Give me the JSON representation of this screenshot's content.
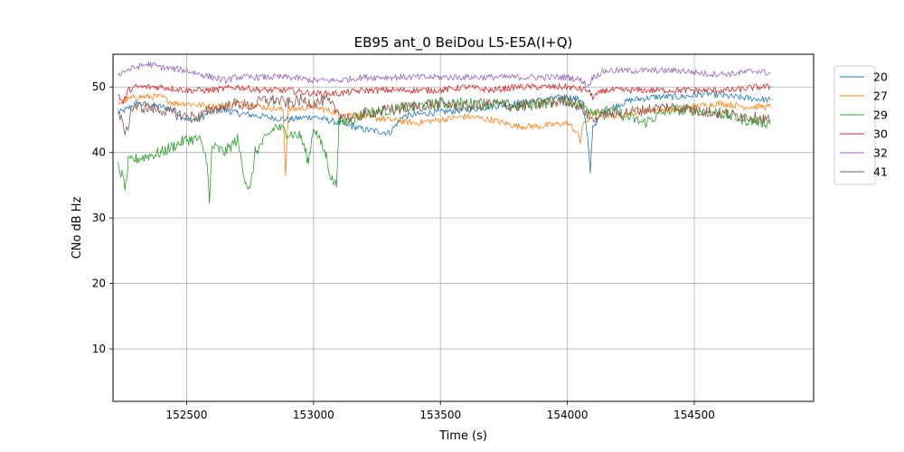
{
  "chart_data": {
    "type": "line",
    "title": "EB95 ant_0 BeiDou L5-E5A(I+Q)",
    "xlabel": "Time (s)",
    "ylabel": "CNo dB Hz",
    "xlim": [
      152210,
      154970
    ],
    "ylim": [
      2,
      55
    ],
    "xticks": [
      152500,
      153000,
      153500,
      154000,
      154500
    ],
    "yticks": [
      10,
      20,
      30,
      40,
      50
    ],
    "grid": true,
    "legend_position": "outside-right",
    "x_range_data": [
      152230,
      154800
    ],
    "series": [
      {
        "name": "20",
        "color": "#1f77b4",
        "points": [
          [
            152230,
            46.0
          ],
          [
            152260,
            46.5
          ],
          [
            152300,
            47.5
          ],
          [
            152400,
            47.0
          ],
          [
            152450,
            46.5
          ],
          [
            152500,
            45.0
          ],
          [
            152550,
            45.0
          ],
          [
            152600,
            46.5
          ],
          [
            152650,
            46.5
          ],
          [
            152700,
            46.0
          ],
          [
            152800,
            45.5
          ],
          [
            152900,
            45.0
          ],
          [
            153000,
            45.5
          ],
          [
            153050,
            45.0
          ],
          [
            153100,
            44.5
          ],
          [
            153200,
            43.5
          ],
          [
            153300,
            43.0
          ],
          [
            153350,
            45.5
          ],
          [
            153450,
            46.0
          ],
          [
            153600,
            46.5
          ],
          [
            153700,
            47.0
          ],
          [
            153800,
            47.5
          ],
          [
            153900,
            48.0
          ],
          [
            154000,
            48.5
          ],
          [
            154060,
            48.0
          ],
          [
            154080,
            42.0
          ],
          [
            154090,
            37.0
          ],
          [
            154100,
            44.0
          ],
          [
            154150,
            46.5
          ],
          [
            154250,
            48.0
          ],
          [
            154350,
            48.5
          ],
          [
            154450,
            48.5
          ],
          [
            154550,
            49.0
          ],
          [
            154650,
            48.5
          ],
          [
            154800,
            48.0
          ]
        ]
      },
      {
        "name": "27",
        "color": "#ff7f0e",
        "points": [
          [
            152230,
            47.5
          ],
          [
            152260,
            48.0
          ],
          [
            152300,
            48.5
          ],
          [
            152400,
            48.5
          ],
          [
            152450,
            47.5
          ],
          [
            152500,
            47.5
          ],
          [
            152600,
            47.0
          ],
          [
            152700,
            47.5
          ],
          [
            152800,
            47.0
          ],
          [
            152880,
            46.5
          ],
          [
            152890,
            36.5
          ],
          [
            152900,
            46.5
          ],
          [
            153000,
            47.0
          ],
          [
            153100,
            46.0
          ],
          [
            153200,
            45.5
          ],
          [
            153300,
            45.0
          ],
          [
            153400,
            44.5
          ],
          [
            153500,
            45.0
          ],
          [
            153600,
            45.5
          ],
          [
            153700,
            45.0
          ],
          [
            153800,
            44.0
          ],
          [
            153900,
            44.0
          ],
          [
            154000,
            44.5
          ],
          [
            154040,
            43.0
          ],
          [
            154050,
            41.5
          ],
          [
            154060,
            44.0
          ],
          [
            154100,
            46.0
          ],
          [
            154200,
            45.5
          ],
          [
            154300,
            46.5
          ],
          [
            154400,
            46.5
          ],
          [
            154500,
            47.0
          ],
          [
            154600,
            47.5
          ],
          [
            154700,
            47.0
          ],
          [
            154800,
            47.0
          ]
        ]
      },
      {
        "name": "29",
        "color": "#2ca02c",
        "points": [
          [
            152230,
            38.0
          ],
          [
            152245,
            36.5
          ],
          [
            152260,
            34.5
          ],
          [
            152270,
            38.5
          ],
          [
            152300,
            39.0
          ],
          [
            152350,
            39.5
          ],
          [
            152400,
            40.0
          ],
          [
            152450,
            41.0
          ],
          [
            152500,
            42.0
          ],
          [
            152550,
            42.0
          ],
          [
            152580,
            39.0
          ],
          [
            152590,
            32.0
          ],
          [
            152600,
            41.0
          ],
          [
            152650,
            40.0
          ],
          [
            152700,
            42.0
          ],
          [
            152730,
            36.0
          ],
          [
            152750,
            34.0
          ],
          [
            152770,
            40.0
          ],
          [
            152800,
            41.5
          ],
          [
            152850,
            44.0
          ],
          [
            152900,
            43.0
          ],
          [
            152950,
            42.5
          ],
          [
            152980,
            38.5
          ],
          [
            153000,
            44.0
          ],
          [
            153050,
            39.5
          ],
          [
            153070,
            36.0
          ],
          [
            153090,
            35.0
          ],
          [
            153100,
            44.5
          ],
          [
            153150,
            45.0
          ],
          [
            153200,
            46.0
          ],
          [
            153300,
            46.5
          ],
          [
            153400,
            47.0
          ],
          [
            153500,
            47.5
          ],
          [
            153600,
            47.5
          ],
          [
            153700,
            47.5
          ],
          [
            153800,
            47.0
          ],
          [
            153900,
            47.5
          ],
          [
            154000,
            48.0
          ],
          [
            154100,
            46.5
          ],
          [
            154200,
            46.0
          ],
          [
            154300,
            44.5
          ],
          [
            154400,
            46.5
          ],
          [
            154500,
            46.5
          ],
          [
            154600,
            46.0
          ],
          [
            154700,
            45.0
          ],
          [
            154800,
            44.5
          ]
        ]
      },
      {
        "name": "30",
        "color": "#d62728",
        "points": [
          [
            152230,
            49.0
          ],
          [
            152250,
            47.5
          ],
          [
            152270,
            49.5
          ],
          [
            152300,
            50.0
          ],
          [
            152400,
            50.0
          ],
          [
            152500,
            49.5
          ],
          [
            152600,
            49.5
          ],
          [
            152700,
            50.0
          ],
          [
            152800,
            49.5
          ],
          [
            152900,
            49.5
          ],
          [
            153000,
            49.0
          ],
          [
            153100,
            49.0
          ],
          [
            153200,
            49.5
          ],
          [
            153300,
            49.5
          ],
          [
            153400,
            49.5
          ],
          [
            153500,
            49.5
          ],
          [
            153600,
            50.0
          ],
          [
            153700,
            49.5
          ],
          [
            153800,
            50.0
          ],
          [
            153900,
            50.0
          ],
          [
            154000,
            50.0
          ],
          [
            154080,
            49.5
          ],
          [
            154100,
            48.5
          ],
          [
            154150,
            49.5
          ],
          [
            154250,
            49.5
          ],
          [
            154350,
            49.5
          ],
          [
            154450,
            49.5
          ],
          [
            154550,
            49.5
          ],
          [
            154650,
            49.5
          ],
          [
            154750,
            50.0
          ],
          [
            154800,
            50.0
          ]
        ]
      },
      {
        "name": "32",
        "color": "#9467bd",
        "points": [
          [
            152230,
            52.0
          ],
          [
            152260,
            52.5
          ],
          [
            152300,
            53.0
          ],
          [
            152350,
            53.5
          ],
          [
            152400,
            53.0
          ],
          [
            152500,
            52.5
          ],
          [
            152550,
            52.0
          ],
          [
            152600,
            51.5
          ],
          [
            152650,
            51.0
          ],
          [
            152700,
            51.5
          ],
          [
            152800,
            51.5
          ],
          [
            152900,
            51.5
          ],
          [
            153000,
            51.0
          ],
          [
            153100,
            51.0
          ],
          [
            153200,
            51.5
          ],
          [
            153300,
            51.5
          ],
          [
            153400,
            51.5
          ],
          [
            153500,
            51.5
          ],
          [
            153600,
            51.5
          ],
          [
            153700,
            51.5
          ],
          [
            153800,
            51.5
          ],
          [
            153900,
            51.5
          ],
          [
            154000,
            51.5
          ],
          [
            154060,
            51.0
          ],
          [
            154080,
            50.0
          ],
          [
            154100,
            51.5
          ],
          [
            154150,
            52.5
          ],
          [
            154250,
            52.5
          ],
          [
            154350,
            52.5
          ],
          [
            154450,
            52.5
          ],
          [
            154550,
            52.0
          ],
          [
            154650,
            52.0
          ],
          [
            154750,
            52.5
          ],
          [
            154800,
            52.0
          ]
        ]
      },
      {
        "name": "41",
        "color": "#8c564b",
        "points": [
          [
            152230,
            46.5
          ],
          [
            152250,
            44.0
          ],
          [
            152265,
            43.0
          ],
          [
            152280,
            46.5
          ],
          [
            152300,
            47.0
          ],
          [
            152400,
            46.5
          ],
          [
            152450,
            46.0
          ],
          [
            152500,
            45.5
          ],
          [
            152550,
            45.5
          ],
          [
            152600,
            46.5
          ],
          [
            152650,
            47.0
          ],
          [
            152700,
            47.5
          ],
          [
            152750,
            47.0
          ],
          [
            152800,
            48.0
          ],
          [
            152850,
            48.0
          ],
          [
            152900,
            47.5
          ],
          [
            152950,
            48.0
          ],
          [
            153000,
            47.5
          ],
          [
            153050,
            48.0
          ],
          [
            153100,
            46.0
          ],
          [
            153150,
            45.0
          ],
          [
            153200,
            46.0
          ],
          [
            153300,
            46.5
          ],
          [
            153400,
            47.0
          ],
          [
            153500,
            47.5
          ],
          [
            153600,
            47.0
          ],
          [
            153700,
            47.5
          ],
          [
            153800,
            47.0
          ],
          [
            153900,
            47.5
          ],
          [
            154000,
            48.0
          ],
          [
            154050,
            47.0
          ],
          [
            154100,
            45.0
          ],
          [
            154150,
            46.0
          ],
          [
            154200,
            46.0
          ],
          [
            154300,
            46.5
          ],
          [
            154400,
            47.0
          ],
          [
            154500,
            46.5
          ],
          [
            154600,
            46.0
          ],
          [
            154700,
            45.5
          ],
          [
            154800,
            45.0
          ]
        ]
      }
    ]
  }
}
